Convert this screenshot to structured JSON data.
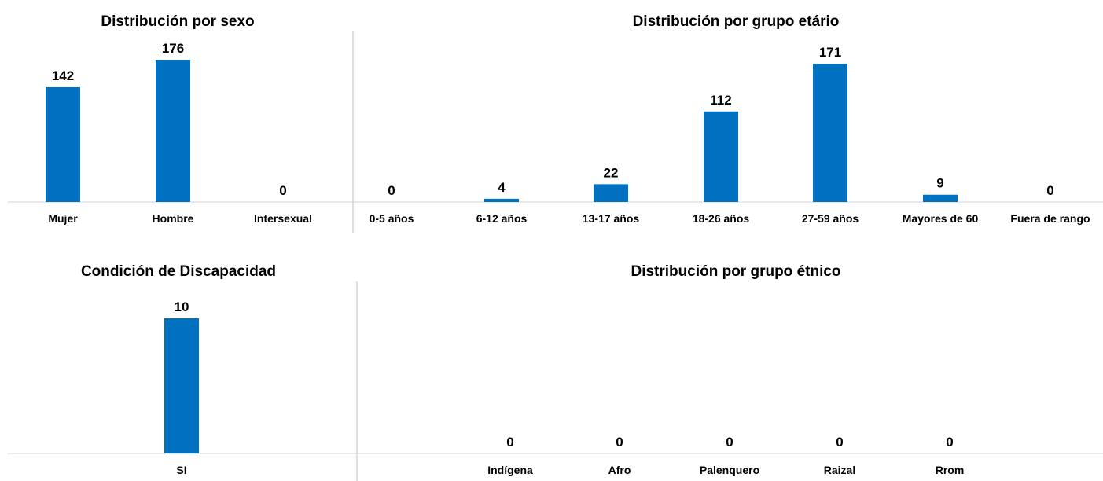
{
  "colors": {
    "bar": "#0070C0",
    "axis": "#d0d0d0",
    "separator": "#bfbfbf",
    "text": "#000000"
  },
  "chart_data": [
    {
      "type": "bar",
      "title": "Distribución por sexo",
      "categories": [
        "Mujer",
        "Hombre",
        "Intersexual"
      ],
      "values": [
        142,
        176,
        0
      ],
      "ylim": [
        0,
        176
      ]
    },
    {
      "type": "bar",
      "title": "Distribución por grupo etário",
      "categories": [
        "0-5 años",
        "6-12 años",
        "13-17 años",
        "18-26 años",
        "27-59 años",
        "Mayores de 60",
        "Fuera de rango"
      ],
      "values": [
        0,
        4,
        22,
        112,
        171,
        9,
        0
      ],
      "ylim": [
        0,
        176
      ]
    },
    {
      "type": "bar",
      "title": "Condición de Discapacidad",
      "categories": [
        "SI"
      ],
      "values": [
        10
      ],
      "ylim": [
        0,
        10
      ]
    },
    {
      "type": "bar",
      "title": "Distribución por grupo étnico",
      "categories": [
        "Indígena",
        "Afro",
        "Palenquero",
        "Raizal",
        "Rrom"
      ],
      "values": [
        0,
        0,
        0,
        0,
        0
      ],
      "ylim": [
        0,
        10
      ]
    }
  ]
}
